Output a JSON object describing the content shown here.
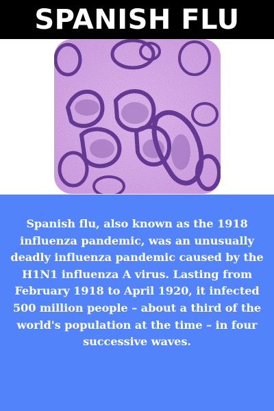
{
  "header": {
    "title": "SPANISH FLU"
  },
  "image": {
    "subject": "influenza-virus-micrograph",
    "colors": {
      "background": "#e6bff0",
      "particle": "#5a2d8a",
      "particle_dark": "#2e1550"
    }
  },
  "panel": {
    "background": "#5283fb",
    "text": "Spanish flu, also known as the 1918 influenza pandemic, was an unusually deadly influenza pandemic caused by the H1N1 influenza A virus. Lasting from February 1918 to April 1920, it infected 500 million people – about a third of the world's population at the time – in four successive waves."
  }
}
